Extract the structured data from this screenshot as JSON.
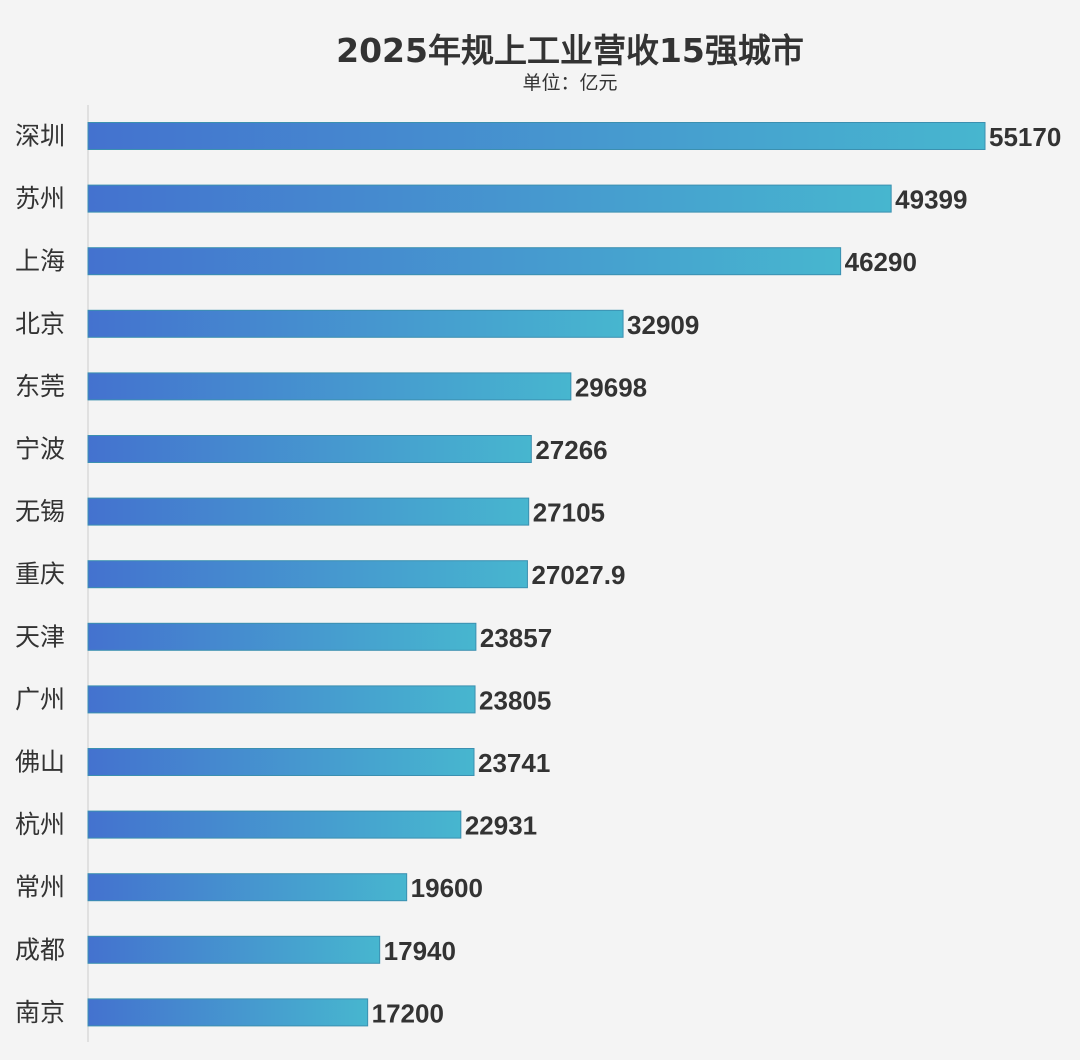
{
  "chart_data": {
    "type": "bar",
    "orientation": "horizontal",
    "title": "2025年规上工业营收15强城市",
    "subtitle": "单位：亿元",
    "xlabel": "",
    "ylabel": "",
    "categories": [
      "深圳",
      "苏州",
      "上海",
      "北京",
      "东莞",
      "宁波",
      "无锡",
      "重庆",
      "天津",
      "广州",
      "佛山",
      "杭州",
      "常州",
      "成都",
      "南京"
    ],
    "values": [
      55170,
      49399,
      46290,
      32909,
      29698,
      27266,
      27105,
      27027.9,
      23857,
      23805,
      23741,
      22931,
      19600,
      17940,
      17200
    ],
    "value_labels": [
      "55170",
      "49399",
      "46290",
      "32909",
      "29698",
      "27266",
      "27105",
      "27027.9",
      "23857",
      "23805",
      "23741",
      "22931",
      "19600",
      "17940",
      "17200"
    ],
    "xlim": [
      0,
      55170
    ],
    "grid": false,
    "legend": "none",
    "colors": {
      "bar_start": "#4472cf",
      "bar_end": "#47b6cf",
      "bar_border": "#3b90b0",
      "axis": "#cccccc",
      "text": "#333333",
      "background": "#f4f4f4"
    }
  }
}
